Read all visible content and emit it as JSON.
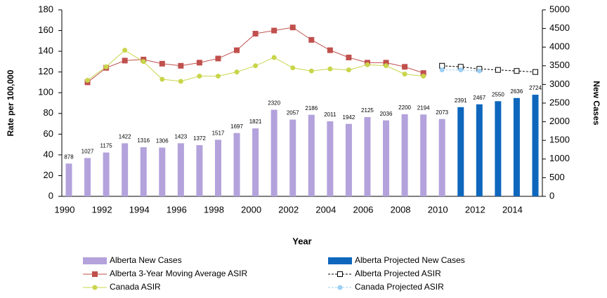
{
  "chart_data": {
    "type": "bar-line",
    "x_label": "Year",
    "y_label": "Rate per 100,000",
    "y2_label": "New Cases",
    "categories": [
      "1990",
      null,
      "1992",
      null,
      "1994",
      null,
      "1996",
      null,
      "1998",
      null,
      "2000",
      null,
      "2002",
      null,
      "2004",
      null,
      "2006",
      null,
      "2008",
      null,
      "2010",
      null,
      "2012",
      null,
      "2014",
      null
    ],
    "ylim": [
      0,
      180
    ],
    "yticks": [
      0,
      20,
      40,
      60,
      80,
      100,
      120,
      140,
      160,
      180
    ],
    "y2lim": [
      0,
      5000
    ],
    "y2ticks": [
      0,
      500,
      1000,
      1500,
      2000,
      2500,
      3000,
      3500,
      4000,
      4500,
      5000
    ],
    "series": [
      {
        "name": "Alberta New Cases",
        "type": "bar",
        "axis": "y2",
        "color": "#b3a2dc",
        "data_labels": true,
        "values": [
          878,
          1027,
          1175,
          1422,
          1316,
          1306,
          1423,
          1372,
          1517,
          1697,
          1821,
          2320,
          2057,
          2186,
          2011,
          1942,
          2125,
          2036,
          2200,
          2194,
          2073,
          null,
          null,
          null,
          null,
          null
        ]
      },
      {
        "name": "Alberta Projected New Cases",
        "type": "bar",
        "axis": "y2",
        "color": "#0e67bd",
        "data_labels": true,
        "values": [
          null,
          null,
          null,
          null,
          null,
          null,
          null,
          null,
          null,
          null,
          null,
          null,
          null,
          null,
          null,
          null,
          null,
          null,
          null,
          null,
          null,
          2391,
          2467,
          2550,
          2636,
          2724
        ]
      },
      {
        "name": "Alberta 3-Year Moving Average ASIR",
        "type": "line",
        "color": "#c0504d",
        "marker": "square",
        "values": [
          null,
          110,
          124,
          131,
          132,
          128,
          126,
          129,
          133,
          141,
          157,
          160,
          163,
          151,
          141,
          134,
          129,
          129,
          125,
          119,
          null,
          null,
          null,
          null,
          null,
          null
        ]
      },
      {
        "name": "Alberta Projected ASIR",
        "type": "line",
        "color": "#000000",
        "marker": "hollow-square",
        "dashed": true,
        "values": [
          null,
          null,
          null,
          null,
          null,
          null,
          null,
          null,
          null,
          null,
          null,
          null,
          null,
          null,
          null,
          null,
          null,
          null,
          null,
          null,
          126,
          125,
          123,
          122,
          121,
          120
        ]
      },
      {
        "name": "Canada ASIR",
        "type": "line",
        "color": "#c9d54a",
        "marker": "circle",
        "values": [
          null,
          112,
          125,
          141,
          130,
          113,
          111,
          116,
          116,
          120,
          126,
          134,
          124,
          121,
          123,
          122,
          127,
          126,
          118,
          116,
          null,
          null,
          null,
          null,
          null,
          null
        ]
      },
      {
        "name": "Canada Projected ASIR",
        "type": "line",
        "color": "#9dd0f3",
        "marker": "circle",
        "dashed": true,
        "values": [
          null,
          null,
          null,
          null,
          null,
          null,
          null,
          null,
          null,
          null,
          null,
          null,
          null,
          null,
          null,
          null,
          null,
          null,
          null,
          null,
          122,
          122,
          121,
          null,
          null,
          null
        ]
      }
    ]
  }
}
